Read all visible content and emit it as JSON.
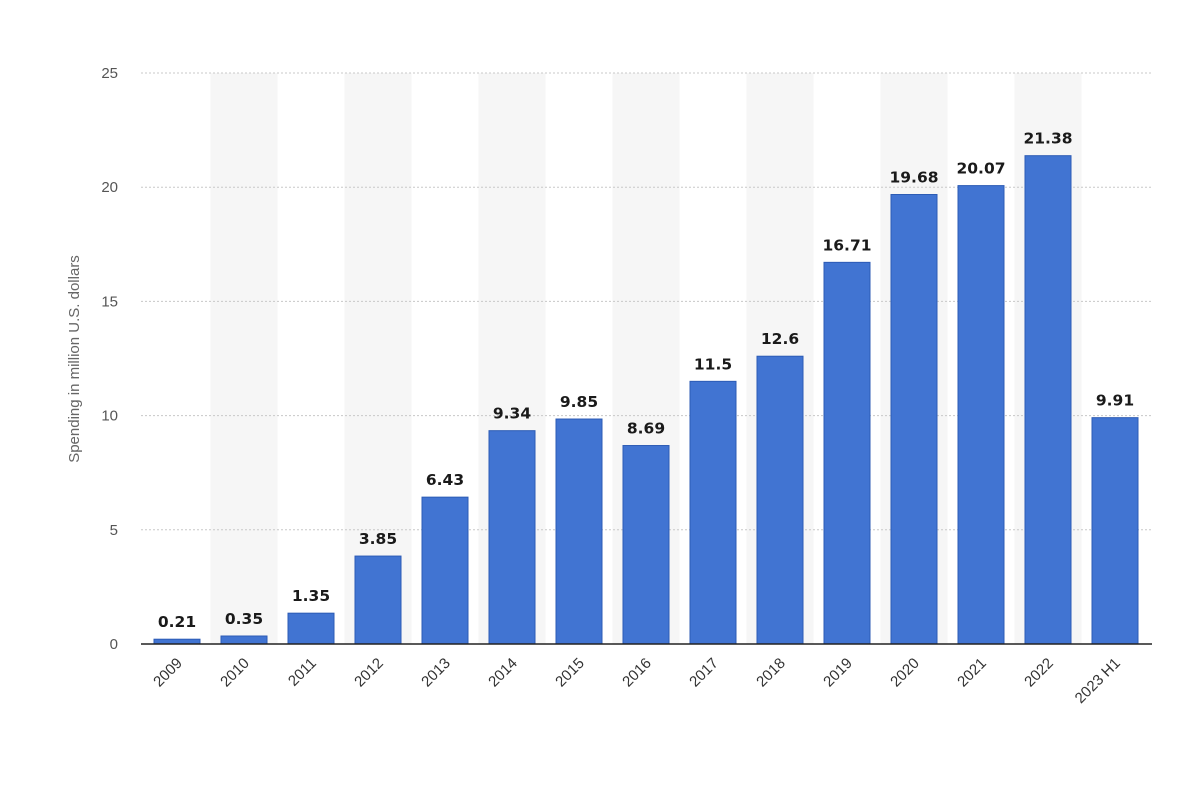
{
  "chart_data": {
    "type": "bar",
    "categories": [
      "2009",
      "2010",
      "2011",
      "2012",
      "2013",
      "2014",
      "2015",
      "2016",
      "2017",
      "2018",
      "2019",
      "2020",
      "2021",
      "2022",
      "2023 H1"
    ],
    "values": [
      0.21,
      0.35,
      1.35,
      3.85,
      6.43,
      9.34,
      9.85,
      8.69,
      11.5,
      12.6,
      16.71,
      19.68,
      20.07,
      21.38,
      9.91
    ],
    "data_labels": [
      "0.21",
      "0.35",
      "1.35",
      "3.85",
      "6.43",
      "9.34",
      "9.85",
      "8.69",
      "11.5",
      "12.6",
      "16.71",
      "19.68",
      "20.07",
      "21.38",
      "9.91"
    ],
    "title": "",
    "xlabel": "",
    "ylabel": "Spending in million U.S. dollars",
    "ylim": [
      0,
      25
    ],
    "yticks": [
      0,
      5,
      10,
      15,
      20,
      25
    ],
    "grid": true,
    "alternating_band_color": "#f6f6f6",
    "bar_color": "#4174d2",
    "bar_edge_color": "#2c5bb5"
  }
}
